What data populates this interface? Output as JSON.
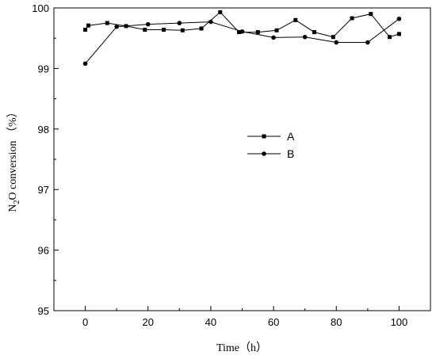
{
  "chart_data": {
    "type": "line",
    "xlabel": "Time（h）",
    "ylabel": "N2O conversion （%）",
    "ylabel_parts": {
      "pre": "N",
      "sub": "2",
      "post": "O conversion （%）"
    },
    "xlim": [
      -10,
      110
    ],
    "ylim": [
      95,
      100
    ],
    "xticks": [
      0,
      20,
      40,
      60,
      80,
      100
    ],
    "yticks": [
      95,
      96,
      97,
      98,
      99,
      100
    ],
    "legend_position": "center",
    "series": [
      {
        "name": "A",
        "marker": "square",
        "x": [
          0,
          1,
          7,
          13,
          19,
          25,
          31,
          37,
          43,
          49,
          55,
          61,
          67,
          73,
          79,
          85,
          91,
          97,
          100
        ],
        "y": [
          99.64,
          99.71,
          99.75,
          99.7,
          99.64,
          99.64,
          99.63,
          99.66,
          99.93,
          99.6,
          99.6,
          99.63,
          99.8,
          99.6,
          99.52,
          99.83,
          99.9,
          99.52,
          99.57
        ]
      },
      {
        "name": "B",
        "marker": "circle",
        "x": [
          0,
          10,
          20,
          30,
          40,
          50,
          60,
          70,
          80,
          90,
          100
        ],
        "y": [
          99.08,
          99.69,
          99.73,
          99.75,
          99.77,
          99.61,
          99.51,
          99.52,
          99.43,
          99.43,
          99.82
        ]
      }
    ]
  }
}
